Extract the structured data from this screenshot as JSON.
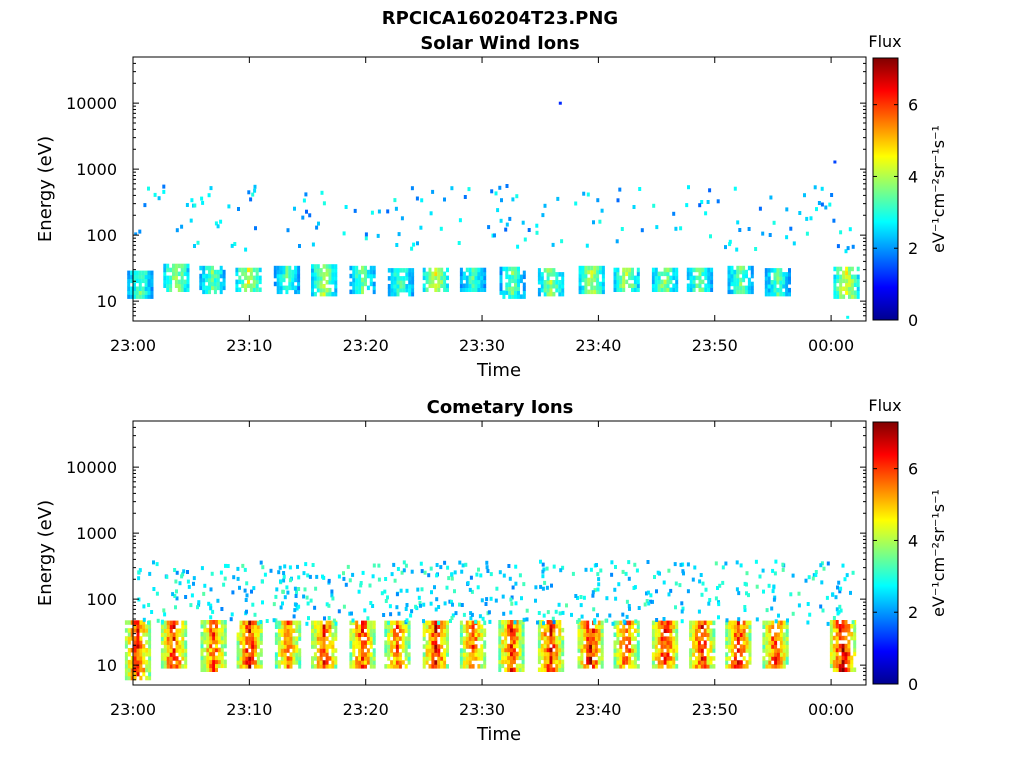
{
  "figure": {
    "title": "RPCICA160204T23.PNG"
  },
  "chart_data": [
    {
      "type": "heatmap",
      "title": "Solar Wind Ions",
      "xlabel": "Time",
      "ylabel": "Energy (eV)",
      "x_ticks": [
        "23:00",
        "23:10",
        "23:20",
        "23:30",
        "23:40",
        "23:50",
        "00:00"
      ],
      "y_ticks": [
        "10",
        "100",
        "1000",
        "10000"
      ],
      "y_scale": "log",
      "ylim": [
        5,
        50000
      ],
      "xlim_minutes": [
        0,
        63
      ],
      "colorbar": {
        "label": "Flux",
        "units": "eV⁻¹cm⁻²sr⁻¹s⁻¹",
        "ticks": [
          "0",
          "2",
          "4",
          "6"
        ],
        "range": [
          0,
          7.3
        ],
        "colormap": "jet"
      },
      "bands": [
        {
          "t": 0.5,
          "emin": 11,
          "emax": 28,
          "value": 3.4
        },
        {
          "t": 3.6,
          "emin": 14,
          "emax": 35,
          "value": 4.0
        },
        {
          "t": 6.7,
          "emin": 13,
          "emax": 30,
          "value": 3.5
        },
        {
          "t": 9.8,
          "emin": 14,
          "emax": 30,
          "value": 4.2
        },
        {
          "t": 13.1,
          "emin": 13,
          "emax": 30,
          "value": 3.3
        },
        {
          "t": 16.3,
          "emin": 12,
          "emax": 32,
          "value": 3.9
        },
        {
          "t": 19.6,
          "emin": 13,
          "emax": 32,
          "value": 3.6
        },
        {
          "t": 22.9,
          "emin": 12,
          "emax": 30,
          "value": 3.4
        },
        {
          "t": 25.9,
          "emin": 14,
          "emax": 32,
          "value": 4.3
        },
        {
          "t": 29.1,
          "emin": 14,
          "emax": 30,
          "value": 3.3
        },
        {
          "t": 32.5,
          "emin": 11,
          "emax": 30,
          "value": 3.5
        },
        {
          "t": 35.8,
          "emin": 12,
          "emax": 30,
          "value": 3.8
        },
        {
          "t": 39.3,
          "emin": 13,
          "emax": 30,
          "value": 4.0
        },
        {
          "t": 42.3,
          "emin": 14,
          "emax": 30,
          "value": 4.1
        },
        {
          "t": 45.6,
          "emin": 14,
          "emax": 30,
          "value": 3.8
        },
        {
          "t": 48.6,
          "emin": 14,
          "emax": 30,
          "value": 3.6
        },
        {
          "t": 52.1,
          "emin": 13,
          "emax": 30,
          "value": 3.5
        },
        {
          "t": 55.3,
          "emin": 12,
          "emax": 30,
          "value": 3.4
        },
        {
          "t": 61.2,
          "emin": 11,
          "emax": 30,
          "value": 4.4
        }
      ],
      "sparse": {
        "emin": 60,
        "emax": 600,
        "value": 2.3
      },
      "isolated": [
        {
          "t": 36.6,
          "e": 10500,
          "value": 1.2
        },
        {
          "t": 60.2,
          "e": 1350,
          "value": 1.4
        },
        {
          "t": 0.1,
          "e": 110,
          "value": 2.0
        },
        {
          "t": 61.3,
          "e": 6,
          "value": 2.8
        }
      ]
    },
    {
      "type": "heatmap",
      "title": "Cometary Ions",
      "xlabel": "Time",
      "ylabel": "Energy (eV)",
      "x_ticks": [
        "23:00",
        "23:10",
        "23:20",
        "23:30",
        "23:40",
        "23:50",
        "00:00"
      ],
      "y_ticks": [
        "10",
        "100",
        "1000",
        "10000"
      ],
      "y_scale": "log",
      "ylim": [
        5,
        50000
      ],
      "xlim_minutes": [
        0,
        63
      ],
      "colorbar": {
        "label": "Flux",
        "units": "eV⁻¹cm⁻²sr⁻¹s⁻¹",
        "ticks": [
          "0",
          "2",
          "4",
          "6"
        ],
        "range": [
          0,
          7.3
        ],
        "colormap": "jet"
      },
      "bands": [
        {
          "t": 0.3,
          "emin": 6,
          "emax": 45,
          "value": 6.0
        },
        {
          "t": 3.4,
          "emin": 9,
          "emax": 45,
          "value": 6.2
        },
        {
          "t": 6.8,
          "emin": 8,
          "emax": 45,
          "value": 5.8
        },
        {
          "t": 9.9,
          "emin": 9,
          "emax": 45,
          "value": 6.3
        },
        {
          "t": 13.2,
          "emin": 9,
          "emax": 45,
          "value": 5.6
        },
        {
          "t": 16.3,
          "emin": 9,
          "emax": 45,
          "value": 6.1
        },
        {
          "t": 19.6,
          "emin": 9,
          "emax": 45,
          "value": 6.0
        },
        {
          "t": 22.6,
          "emin": 9,
          "emax": 45,
          "value": 5.7
        },
        {
          "t": 25.9,
          "emin": 9,
          "emax": 45,
          "value": 6.3
        },
        {
          "t": 29.1,
          "emin": 9,
          "emax": 45,
          "value": 5.8
        },
        {
          "t": 32.4,
          "emin": 8,
          "emax": 45,
          "value": 6.0
        },
        {
          "t": 35.8,
          "emin": 8,
          "emax": 45,
          "value": 6.2
        },
        {
          "t": 39.2,
          "emin": 9,
          "emax": 45,
          "value": 6.4
        },
        {
          "t": 42.3,
          "emin": 9,
          "emax": 45,
          "value": 5.9
        },
        {
          "t": 45.6,
          "emin": 9,
          "emax": 45,
          "value": 6.3
        },
        {
          "t": 48.8,
          "emin": 9,
          "emax": 45,
          "value": 6.1
        },
        {
          "t": 51.9,
          "emin": 9,
          "emax": 45,
          "value": 6.2
        },
        {
          "t": 55.1,
          "emin": 9,
          "emax": 45,
          "value": 6.0
        },
        {
          "t": 60.9,
          "emin": 8,
          "emax": 45,
          "value": 6.6
        }
      ],
      "sparse": {
        "emin": 45,
        "emax": 400,
        "value": 2.6
      },
      "isolated": []
    }
  ]
}
